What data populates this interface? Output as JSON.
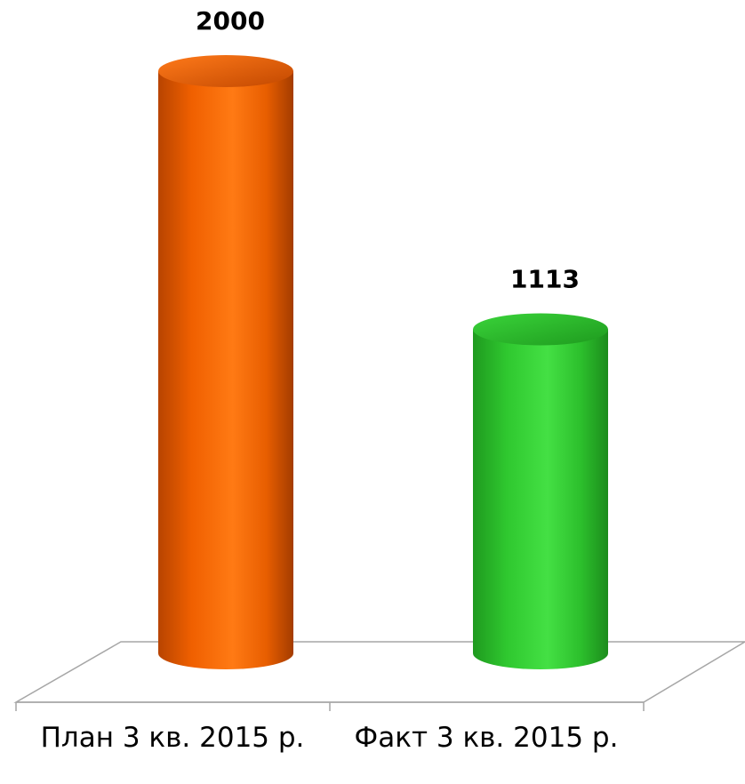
{
  "chart_data": {
    "type": "bar",
    "style": "3d-cylinder",
    "categories": [
      "План 3 кв. 2015 р.",
      "Факт 3 кв. 2015 р."
    ],
    "values": [
      2000,
      1113
    ],
    "data_labels": [
      "2000",
      "1113"
    ],
    "colors": [
      "#ff6600",
      "#33cc33"
    ],
    "title": "",
    "xlabel": "",
    "ylabel": "",
    "ylim": [
      0,
      2000
    ],
    "grid": false,
    "legend": "none"
  }
}
